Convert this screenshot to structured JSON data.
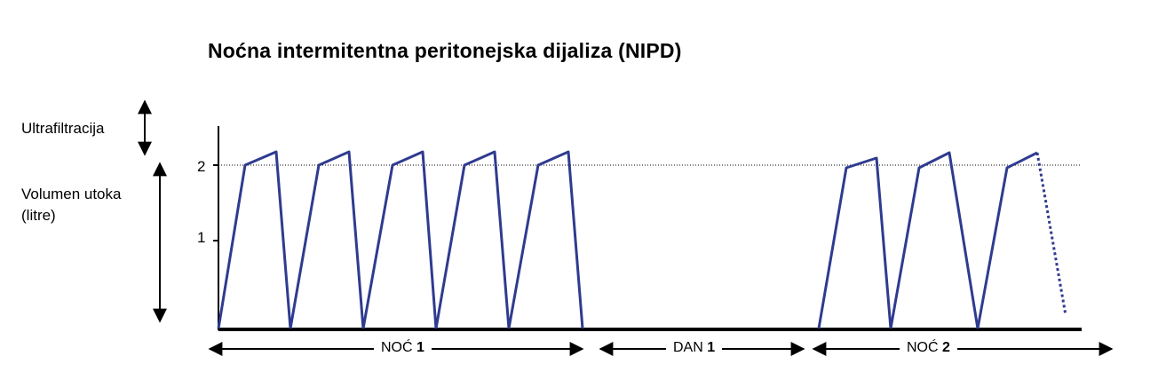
{
  "title": "Noćna intermitentna peritonejska dijaliza (NIPD)",
  "labels": {
    "ultrafiltration": "Ultrafiltracija",
    "inflow_volume": "Volumen utoka",
    "units": "(litre)"
  },
  "y_ticks": [
    "2",
    "1"
  ],
  "segments": [
    {
      "name": "NOĆ",
      "num": "1"
    },
    {
      "name": "DAN",
      "num": "1"
    },
    {
      "name": "NOĆ",
      "num": "2"
    }
  ],
  "colors": {
    "line": "#2f3b8f",
    "axis": "#000000"
  }
}
